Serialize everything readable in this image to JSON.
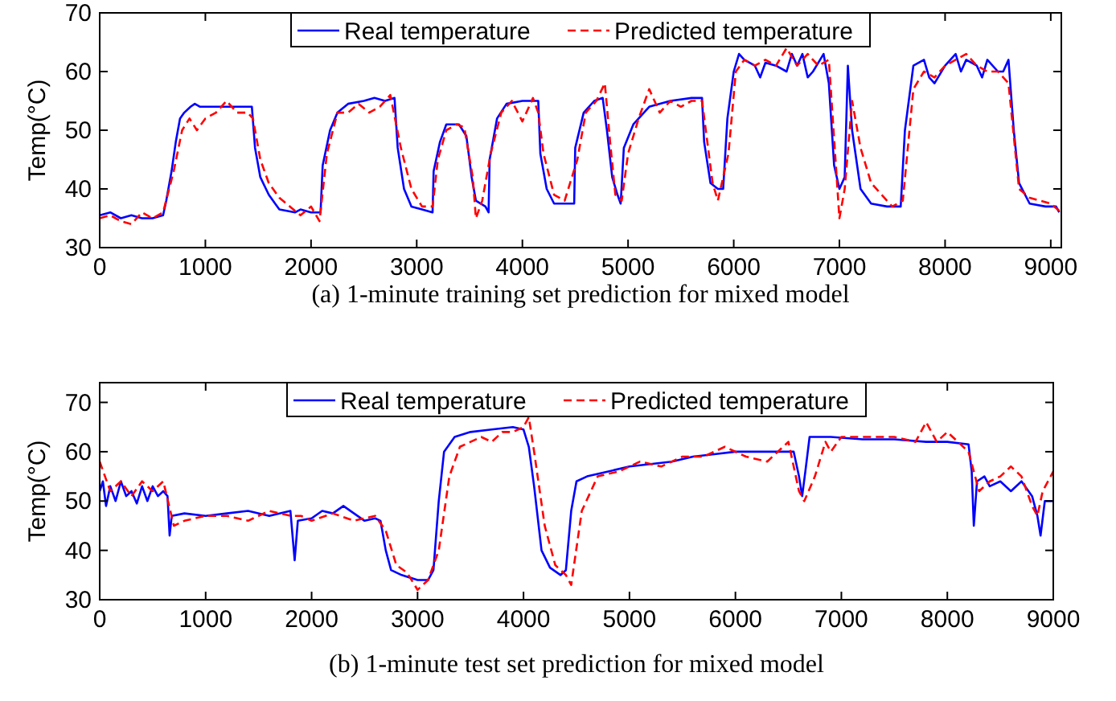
{
  "chart_data": [
    {
      "type": "line",
      "title": "(a)  1-minute training set prediction for mixed model",
      "ylabel": "Temp(°C)",
      "xlim": [
        0,
        9100
      ],
      "ylim": [
        30,
        70
      ],
      "xticks": [
        0,
        1000,
        2000,
        3000,
        4000,
        5000,
        6000,
        7000,
        8000,
        9000
      ],
      "yticks": [
        30,
        40,
        50,
        60,
        70
      ],
      "legend": "top",
      "grid": false,
      "series": [
        {
          "name": "Real temperature",
          "color": "#0000ff",
          "line_style": "solid",
          "x": [
            0,
            100,
            200,
            300,
            400,
            500,
            600,
            630,
            680,
            720,
            760,
            800,
            860,
            900,
            950,
            1100,
            1300,
            1440,
            1470,
            1520,
            1600,
            1700,
            1850,
            1900,
            2000,
            2090,
            2110,
            2180,
            2250,
            2350,
            2500,
            2600,
            2700,
            2790,
            2820,
            2880,
            2950,
            3050,
            3150,
            3160,
            3220,
            3280,
            3400,
            3470,
            3520,
            3560,
            3650,
            3680,
            3690,
            3760,
            3850,
            4000,
            4150,
            4170,
            4230,
            4300,
            4490,
            4500,
            4580,
            4680,
            4760,
            4800,
            4850,
            4900,
            4930,
            4960,
            5050,
            5200,
            5400,
            5600,
            5700,
            5720,
            5780,
            5850,
            5900,
            5940,
            6000,
            6050,
            6100,
            6200,
            6250,
            6300,
            6400,
            6500,
            6550,
            6600,
            6650,
            6700,
            6750,
            6850,
            6900,
            6950,
            7000,
            7050,
            7080,
            7120,
            7200,
            7300,
            7450,
            7580,
            7620,
            7700,
            7800,
            7850,
            7900,
            8000,
            8100,
            8150,
            8200,
            8300,
            8350,
            8400,
            8500,
            8550,
            8600,
            8650,
            8700,
            8800,
            8950,
            9050,
            9080
          ],
          "values": [
            35.5,
            36,
            35,
            35.5,
            35,
            35,
            35.5,
            38,
            43,
            48,
            52,
            53,
            54,
            54.5,
            54,
            54,
            54,
            54,
            47,
            42,
            39,
            36.5,
            36,
            36.5,
            36,
            36,
            44,
            50,
            53,
            54.5,
            55,
            55.5,
            55,
            55.5,
            47,
            40,
            37,
            36.5,
            36,
            43,
            48,
            51,
            51,
            49,
            42,
            38,
            37,
            36,
            45,
            52,
            54.5,
            55,
            55,
            46,
            40,
            37.5,
            37.5,
            47,
            53,
            55,
            55.5,
            50,
            42,
            39,
            37.5,
            47,
            51,
            54,
            55,
            55.5,
            55.5,
            48,
            41,
            40,
            40,
            52,
            60,
            63,
            62,
            61,
            59,
            61.5,
            61,
            60,
            63,
            61,
            63,
            59,
            60,
            63,
            58,
            44,
            40,
            42,
            61,
            50,
            40,
            37.5,
            37,
            37,
            50,
            61,
            62,
            59,
            58,
            61,
            63,
            60,
            62,
            61,
            59,
            62,
            60,
            60,
            62,
            50,
            41,
            37.5,
            37,
            37,
            36
          ]
        },
        {
          "name": "Predicted temperature",
          "color": "#ff0000",
          "line_style": "dashed",
          "x": [
            0,
            100,
            200,
            300,
            400,
            500,
            600,
            700,
            780,
            850,
            920,
            1000,
            1100,
            1200,
            1300,
            1400,
            1450,
            1520,
            1600,
            1700,
            1800,
            1900,
            2000,
            2080,
            2150,
            2250,
            2350,
            2450,
            2550,
            2650,
            2750,
            2850,
            2950,
            3050,
            3150,
            3200,
            3280,
            3380,
            3450,
            3530,
            3560,
            3620,
            3700,
            3800,
            3900,
            4000,
            4100,
            4150,
            4200,
            4300,
            4400,
            4520,
            4600,
            4700,
            4780,
            4830,
            4880,
            4940,
            5000,
            5100,
            5200,
            5300,
            5400,
            5500,
            5600,
            5700,
            5800,
            5850,
            5950,
            6020,
            6100,
            6200,
            6300,
            6400,
            6500,
            6600,
            6700,
            6800,
            6900,
            7000,
            7050,
            7120,
            7200,
            7300,
            7400,
            7500,
            7600,
            7700,
            7800,
            7900,
            8000,
            8100,
            8200,
            8300,
            8400,
            8500,
            8600,
            8700,
            8800,
            8900,
            9000,
            9100
          ],
          "values": [
            35,
            35.5,
            34.5,
            34,
            36,
            35,
            36,
            43,
            50,
            52,
            50,
            52,
            53,
            55,
            53,
            53,
            52,
            45,
            41,
            38.5,
            37,
            35.5,
            37,
            34.5,
            46,
            53,
            53,
            54.5,
            53,
            54,
            56,
            47,
            40,
            37,
            37,
            45,
            50,
            51,
            50.5,
            42,
            35,
            38,
            46,
            53,
            55,
            51.5,
            55.5,
            53,
            46,
            39,
            38,
            45,
            53,
            55,
            58,
            48,
            39,
            38,
            46,
            52,
            57,
            53,
            55,
            54,
            55,
            55,
            41,
            38,
            46,
            60,
            62,
            61,
            62,
            61,
            64,
            61,
            63,
            61,
            62,
            35,
            40,
            55,
            47,
            41,
            39,
            37,
            38,
            57,
            60,
            59,
            61,
            62,
            63,
            61,
            60,
            60,
            58,
            40,
            38.5,
            38,
            37.5,
            36
          ]
        }
      ]
    },
    {
      "type": "line",
      "title": "(b)  1-minute test set prediction for mixed model",
      "ylabel": "Temp(°C)",
      "xlim": [
        0,
        9000
      ],
      "ylim": [
        30,
        74
      ],
      "xticks": [
        0,
        1000,
        2000,
        3000,
        4000,
        5000,
        6000,
        7000,
        8000,
        9000
      ],
      "yticks": [
        30,
        40,
        50,
        60,
        70
      ],
      "legend": "top",
      "grid": false,
      "series": [
        {
          "name": "Real temperature",
          "color": "#0000ff",
          "line_style": "solid",
          "x": [
            0,
            30,
            60,
            100,
            150,
            200,
            250,
            300,
            350,
            400,
            450,
            500,
            550,
            600,
            640,
            660,
            680,
            800,
            1000,
            1200,
            1400,
            1600,
            1800,
            1840,
            1870,
            2000,
            2100,
            2200,
            2300,
            2400,
            2500,
            2600,
            2650,
            2700,
            2750,
            2850,
            3000,
            3100,
            3150,
            3200,
            3250,
            3350,
            3500,
            3700,
            3900,
            4000,
            4050,
            4100,
            4170,
            4250,
            4350,
            4400,
            4450,
            4500,
            4600,
            4800,
            5000,
            5200,
            5400,
            5600,
            5800,
            6000,
            6300,
            6550,
            6600,
            6630,
            6660,
            6700,
            6900,
            7200,
            7500,
            7800,
            8000,
            8200,
            8230,
            8250,
            8280,
            8350,
            8400,
            8500,
            8600,
            8700,
            8800,
            8850,
            8880,
            8920,
            9000
          ],
          "values": [
            52,
            54,
            49,
            53,
            50,
            54,
            51,
            52,
            49.5,
            53,
            50,
            53,
            51,
            52,
            51,
            43,
            47,
            47.5,
            47,
            47.5,
            48,
            47,
            48,
            38,
            46,
            46.5,
            48,
            47.5,
            49,
            47.5,
            46,
            46.5,
            46,
            40,
            36,
            35,
            34,
            34,
            36,
            50,
            60,
            63,
            64,
            64.5,
            65,
            64.5,
            61,
            53,
            40,
            36.5,
            35,
            36,
            48,
            54,
            55,
            56,
            57,
            57.5,
            58,
            59,
            59.5,
            60,
            60,
            60,
            55,
            51,
            56,
            63,
            63,
            62.5,
            62.5,
            62,
            62,
            61.5,
            56,
            45,
            54,
            55,
            53,
            54,
            52,
            54,
            51,
            47,
            43,
            50,
            50
          ]
        },
        {
          "name": "Predicted temperature",
          "color": "#ff0000",
          "line_style": "dashed",
          "x": [
            0,
            50,
            100,
            200,
            300,
            400,
            500,
            600,
            700,
            800,
            1000,
            1200,
            1400,
            1600,
            1800,
            1900,
            2000,
            2200,
            2400,
            2600,
            2700,
            2800,
            2900,
            3000,
            3100,
            3200,
            3300,
            3400,
            3500,
            3600,
            3700,
            3800,
            3900,
            4000,
            4050,
            4100,
            4200,
            4300,
            4400,
            4450,
            4550,
            4700,
            4900,
            5100,
            5300,
            5500,
            5700,
            5900,
            6100,
            6300,
            6500,
            6600,
            6650,
            6750,
            6850,
            6900,
            7000,
            7300,
            7500,
            7700,
            7800,
            7900,
            8000,
            8200,
            8300,
            8400,
            8500,
            8600,
            8700,
            8800,
            8850,
            8900,
            9000
          ],
          "values": [
            58,
            55,
            52,
            54,
            51,
            54,
            52,
            54,
            45,
            46,
            47,
            47,
            46,
            48,
            47,
            47,
            46,
            47.5,
            46,
            47,
            44,
            37,
            35.5,
            32,
            34,
            40,
            55,
            61,
            62,
            63,
            62,
            64,
            64,
            65,
            67,
            60,
            45,
            37,
            35,
            33,
            48,
            55,
            56,
            58,
            57,
            59,
            59,
            61,
            59,
            58,
            62,
            52,
            50,
            55,
            62,
            60,
            63,
            63,
            63,
            62,
            66,
            62,
            64,
            60,
            52,
            54,
            55,
            57,
            55,
            49,
            47,
            52,
            56
          ]
        }
      ]
    }
  ]
}
